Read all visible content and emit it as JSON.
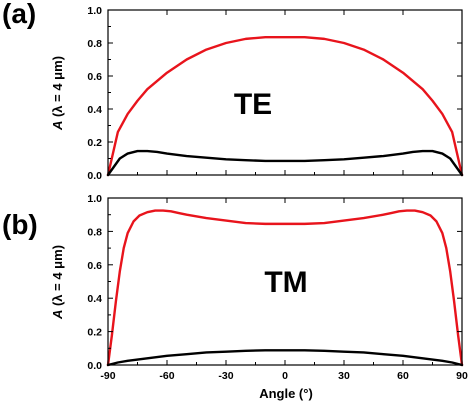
{
  "chart_data": [
    {
      "type": "line",
      "panel_label": "(a)",
      "annotation": "TE",
      "ylabel_main": "A",
      "ylabel_rest": " (λ = 4 μm)",
      "xlim": [
        -90,
        90
      ],
      "ylim": [
        0,
        1.0
      ],
      "yticks": [
        "0.0",
        "0.2",
        "0.4",
        "0.6",
        "0.8",
        "1.0"
      ],
      "ytick_values": [
        0,
        0.2,
        0.4,
        0.6,
        0.8,
        1.0
      ],
      "series": [
        {
          "color": "#e8141c",
          "x": [
            -90,
            -85,
            -80,
            -75,
            -70,
            -65,
            -60,
            -50,
            -40,
            -30,
            -20,
            -10,
            0,
            10,
            20,
            30,
            40,
            50,
            60,
            65,
            70,
            75,
            80,
            85,
            90
          ],
          "y": [
            0.0,
            0.26,
            0.37,
            0.45,
            0.52,
            0.57,
            0.62,
            0.7,
            0.76,
            0.8,
            0.825,
            0.835,
            0.835,
            0.835,
            0.825,
            0.8,
            0.76,
            0.7,
            0.62,
            0.57,
            0.52,
            0.45,
            0.37,
            0.26,
            0.0
          ]
        },
        {
          "color": "#000000",
          "x": [
            -90,
            -87,
            -84,
            -80,
            -75,
            -70,
            -65,
            -60,
            -50,
            -40,
            -30,
            -20,
            -10,
            0,
            10,
            20,
            30,
            40,
            50,
            60,
            65,
            70,
            75,
            80,
            84,
            87,
            90
          ],
          "y": [
            0.0,
            0.05,
            0.1,
            0.13,
            0.145,
            0.145,
            0.14,
            0.13,
            0.115,
            0.105,
            0.095,
            0.09,
            0.085,
            0.085,
            0.085,
            0.09,
            0.095,
            0.105,
            0.115,
            0.13,
            0.14,
            0.145,
            0.145,
            0.13,
            0.1,
            0.05,
            0.0
          ]
        }
      ]
    },
    {
      "type": "line",
      "panel_label": "(b)",
      "annotation": "TM",
      "ylabel_main": "A",
      "ylabel_rest": " (λ = 4 μm)",
      "xlabel": "Angle (°)",
      "xlim": [
        -90,
        90
      ],
      "ylim": [
        0,
        1.0
      ],
      "xticks": [
        "-90",
        "-60",
        "-30",
        "0",
        "30",
        "60",
        "90"
      ],
      "xtick_values": [
        -90,
        -60,
        -30,
        0,
        30,
        60,
        90
      ],
      "yticks": [
        "0.0",
        "0.2",
        "0.4",
        "0.6",
        "0.8",
        "1.0"
      ],
      "ytick_values": [
        0,
        0.2,
        0.4,
        0.6,
        0.8,
        1.0
      ],
      "series": [
        {
          "color": "#e8141c",
          "x": [
            -90,
            -88,
            -86,
            -84,
            -82,
            -80,
            -77,
            -74,
            -70,
            -66,
            -62,
            -58,
            -54,
            -50,
            -40,
            -30,
            -20,
            -10,
            0,
            10,
            20,
            30,
            40,
            50,
            54,
            58,
            62,
            66,
            70,
            74,
            77,
            80,
            82,
            84,
            86,
            88,
            90
          ],
          "y": [
            0.0,
            0.18,
            0.38,
            0.56,
            0.7,
            0.79,
            0.86,
            0.895,
            0.915,
            0.925,
            0.925,
            0.92,
            0.91,
            0.9,
            0.88,
            0.865,
            0.85,
            0.845,
            0.845,
            0.845,
            0.85,
            0.865,
            0.88,
            0.9,
            0.91,
            0.92,
            0.925,
            0.925,
            0.915,
            0.895,
            0.86,
            0.79,
            0.7,
            0.56,
            0.38,
            0.18,
            0.0
          ]
        },
        {
          "color": "#000000",
          "x": [
            -90,
            -85,
            -80,
            -70,
            -60,
            -50,
            -40,
            -30,
            -20,
            -10,
            0,
            10,
            20,
            30,
            40,
            50,
            60,
            70,
            80,
            85,
            90
          ],
          "y": [
            0.0,
            0.015,
            0.025,
            0.04,
            0.055,
            0.065,
            0.075,
            0.08,
            0.085,
            0.088,
            0.088,
            0.088,
            0.085,
            0.08,
            0.075,
            0.065,
            0.055,
            0.04,
            0.025,
            0.015,
            0.0
          ]
        }
      ]
    }
  ]
}
